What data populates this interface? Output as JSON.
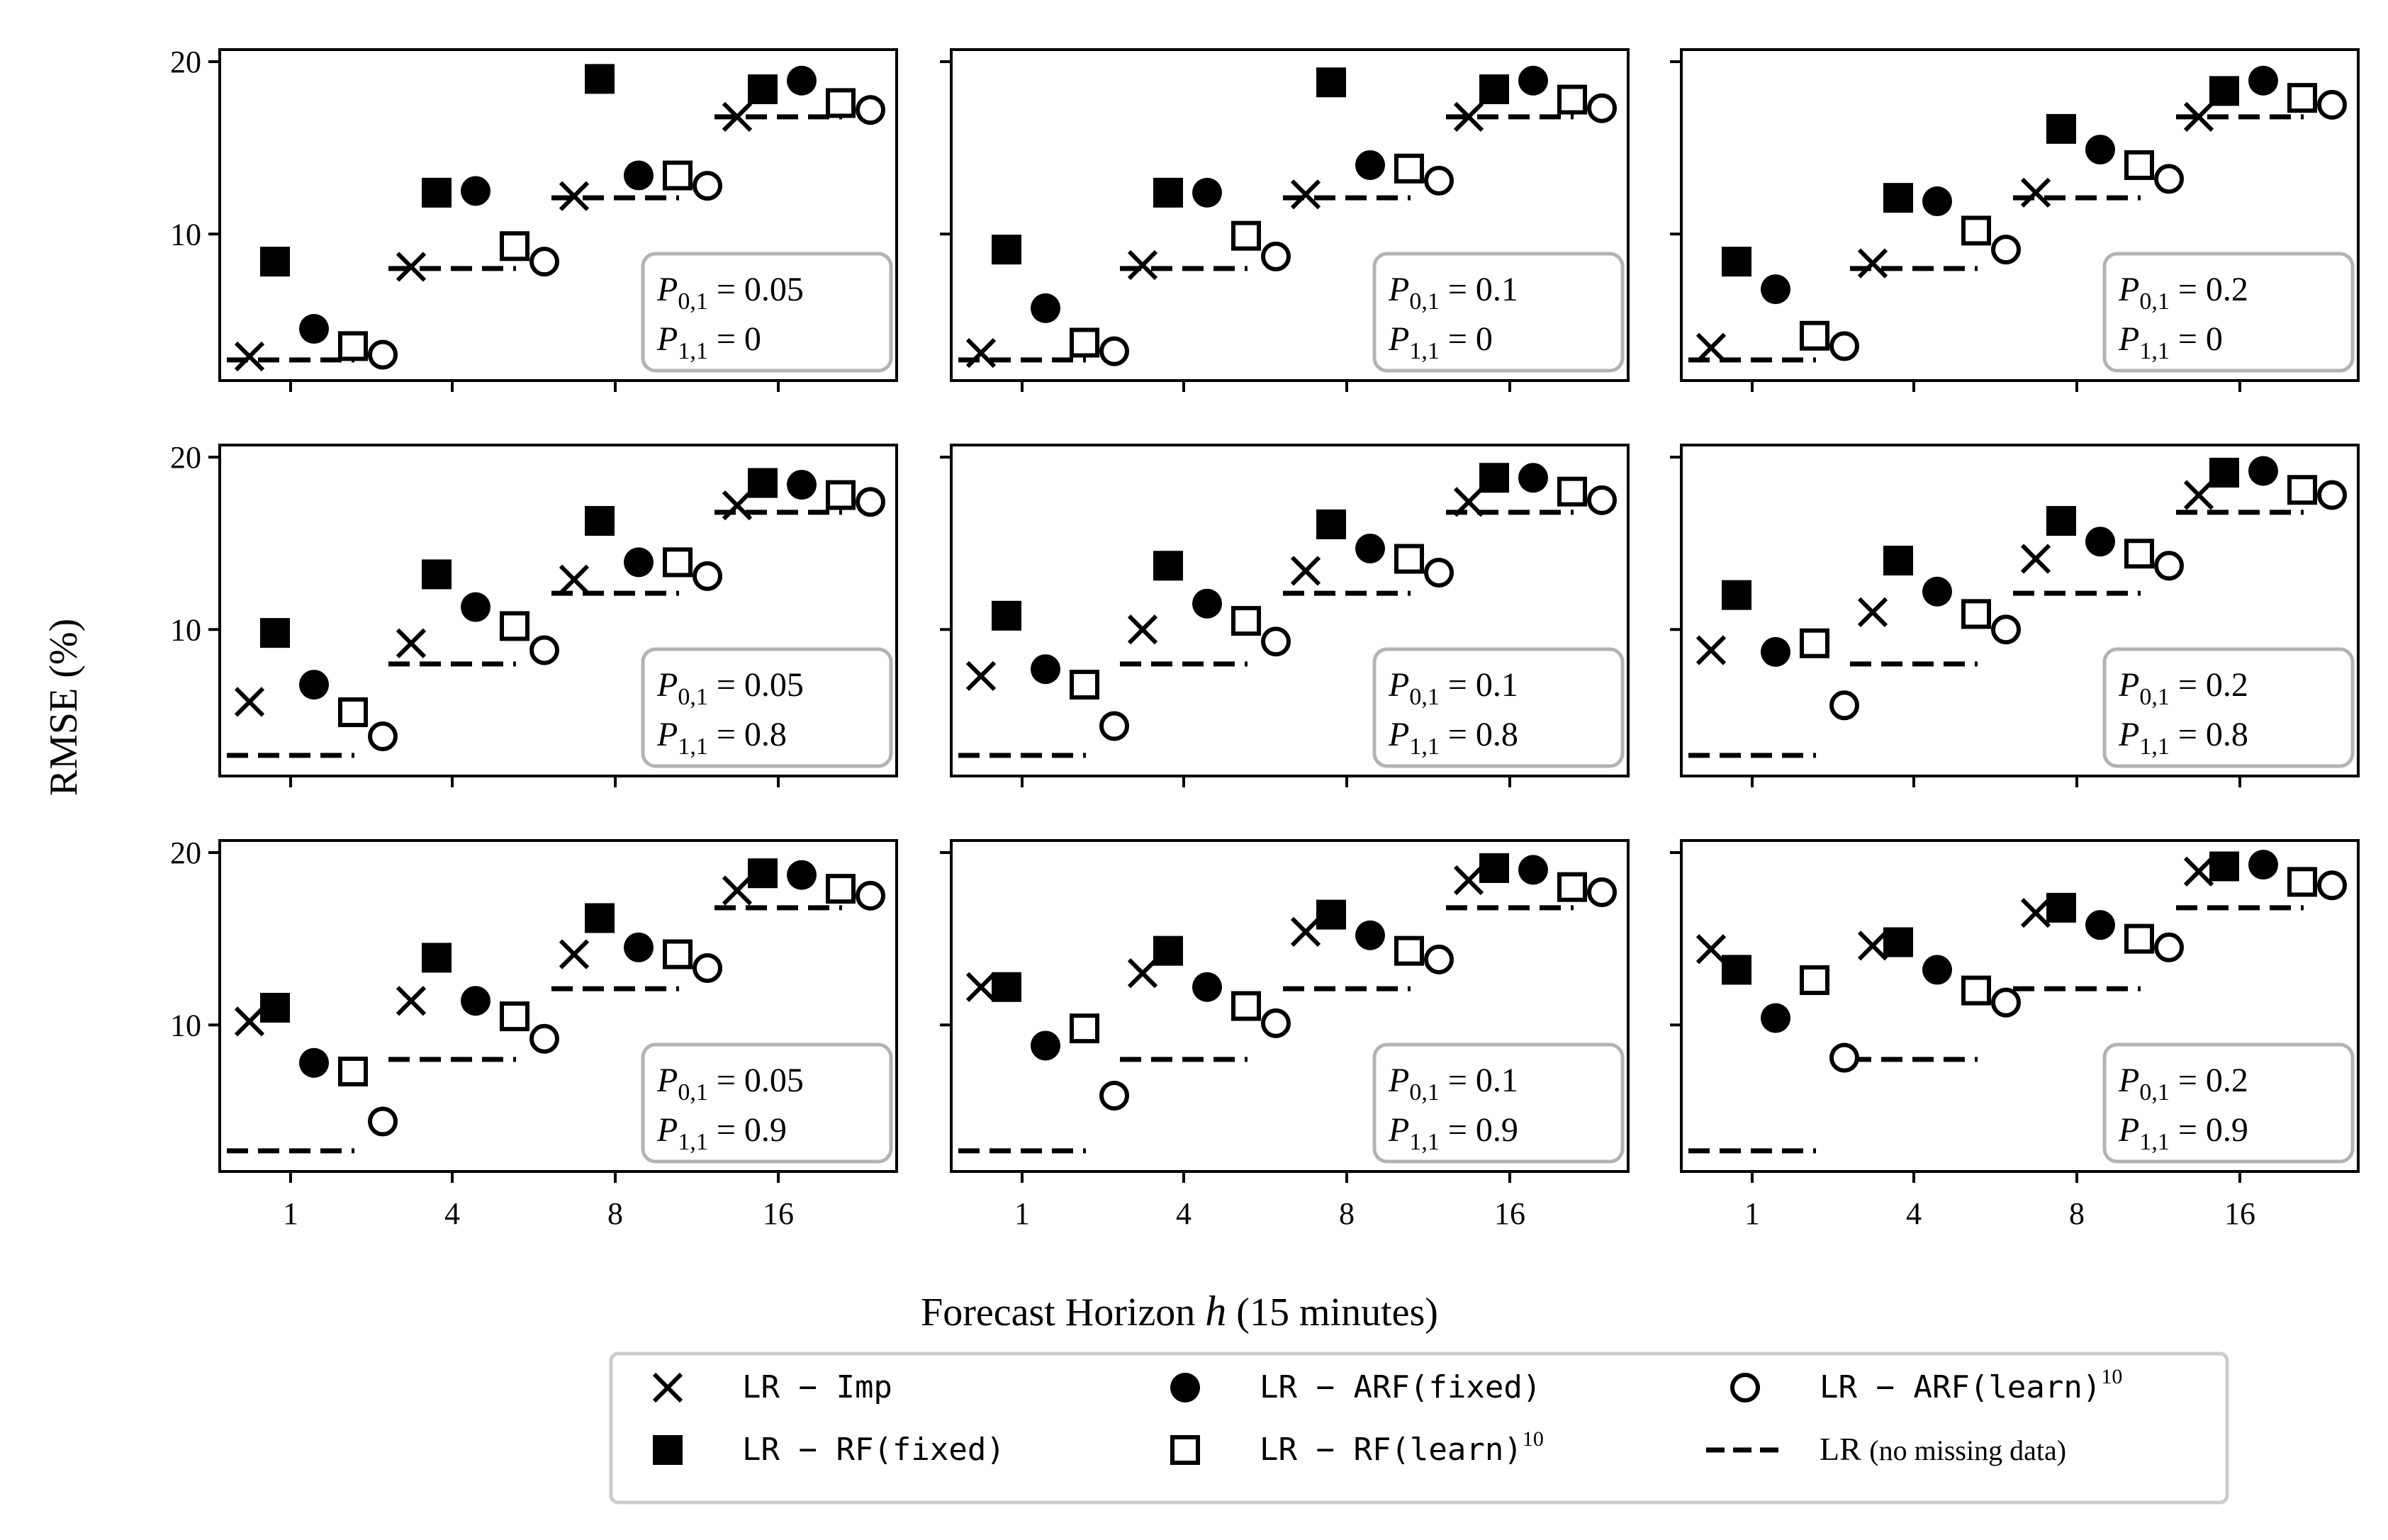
{
  "chart_data": {
    "type": "scatter",
    "ylabel": "RMSE (%)",
    "xlabel": {
      "prefix": "Forecast Horizon ",
      "var": "h",
      "suffix": " (15 minutes)"
    },
    "x_categories": [
      "1",
      "4",
      "8",
      "16"
    ],
    "y_ticks": [
      10,
      20
    ],
    "ylim": [
      1.5,
      20.7
    ],
    "grid": false,
    "legend_placement": "bottom-center",
    "series": [
      {
        "key": "imp",
        "marker": "x",
        "label_mono": "LR − Imp",
        "label_sup": ""
      },
      {
        "key": "rf_fixed",
        "marker": "filled-square",
        "label_mono": "LR − RF(fixed)",
        "label_sup": ""
      },
      {
        "key": "arf_fixed",
        "marker": "filled-circle",
        "label_mono": "LR − ARF(fixed)",
        "label_sup": ""
      },
      {
        "key": "rf_learn",
        "marker": "open-square",
        "label_mono": "LR − RF(learn)",
        "label_sup": "10"
      },
      {
        "key": "arf_learn",
        "marker": "open-circle",
        "label_mono": "LR − ARF(learn)",
        "label_sup": "10"
      },
      {
        "key": "baseline",
        "marker": "dashed-line",
        "label_mono": "",
        "label_serif": "LR",
        "label_small": "(no missing data)"
      }
    ],
    "baseline": [
      2.7,
      8.0,
      12.1,
      16.8
    ],
    "panels": [
      {
        "p01": "0.05",
        "p11": "0",
        "imp": [
          2.9,
          8.1,
          12.2,
          16.8
        ],
        "rf_fixed": [
          8.4,
          12.4,
          19.0,
          18.4
        ],
        "arf_fixed": [
          4.5,
          12.5,
          13.4,
          18.9
        ],
        "rf_learn": [
          3.5,
          9.3,
          13.4,
          17.6
        ],
        "arf_learn": [
          3.0,
          8.4,
          12.8,
          17.2
        ]
      },
      {
        "p01": "0.1",
        "p11": "0",
        "imp": [
          3.1,
          8.2,
          12.3,
          16.8
        ],
        "rf_fixed": [
          9.1,
          12.4,
          18.8,
          18.4
        ],
        "arf_fixed": [
          5.7,
          12.4,
          14.0,
          18.9
        ],
        "rf_learn": [
          3.7,
          9.9,
          13.8,
          17.8
        ],
        "arf_learn": [
          3.2,
          8.7,
          13.1,
          17.3
        ]
      },
      {
        "p01": "0.2",
        "p11": "0",
        "imp": [
          3.4,
          8.3,
          12.4,
          16.8
        ],
        "rf_fixed": [
          8.4,
          12.1,
          16.1,
          18.3
        ],
        "arf_fixed": [
          6.8,
          11.9,
          14.9,
          18.9
        ],
        "rf_learn": [
          4.1,
          10.2,
          14.0,
          17.9
        ],
        "arf_learn": [
          3.5,
          9.1,
          13.2,
          17.5
        ]
      },
      {
        "p01": "0.05",
        "p11": "0.8",
        "imp": [
          5.8,
          9.2,
          12.9,
          17.2
        ],
        "rf_fixed": [
          9.8,
          13.2,
          16.3,
          18.5
        ],
        "arf_fixed": [
          6.8,
          11.3,
          13.9,
          18.4
        ],
        "rf_learn": [
          5.2,
          10.2,
          13.9,
          17.8
        ],
        "arf_learn": [
          3.8,
          8.8,
          13.1,
          17.4
        ]
      },
      {
        "p01": "0.1",
        "p11": "0.8",
        "imp": [
          7.3,
          10.0,
          13.4,
          17.4
        ],
        "rf_fixed": [
          10.8,
          13.7,
          16.1,
          18.8
        ],
        "arf_fixed": [
          7.7,
          11.5,
          14.7,
          18.8
        ],
        "rf_learn": [
          6.8,
          10.5,
          14.1,
          18.0
        ],
        "arf_learn": [
          4.4,
          9.3,
          13.3,
          17.5
        ]
      },
      {
        "p01": "0.2",
        "p11": "0.8",
        "imp": [
          8.8,
          11.0,
          14.1,
          17.8
        ],
        "rf_fixed": [
          12.0,
          14.0,
          16.3,
          19.1
        ],
        "arf_fixed": [
          8.7,
          12.2,
          15.1,
          19.2
        ],
        "rf_learn": [
          9.2,
          10.9,
          14.4,
          18.1
        ],
        "arf_learn": [
          5.6,
          10.0,
          13.7,
          17.8
        ]
      },
      {
        "p01": "0.05",
        "p11": "0.9",
        "imp": [
          10.2,
          11.4,
          14.1,
          17.8
        ],
        "rf_fixed": [
          11.0,
          13.9,
          16.2,
          18.8
        ],
        "arf_fixed": [
          7.8,
          11.4,
          14.5,
          18.7
        ],
        "rf_learn": [
          7.3,
          10.5,
          14.1,
          17.9
        ],
        "arf_learn": [
          4.4,
          9.2,
          13.3,
          17.5
        ]
      },
      {
        "p01": "0.1",
        "p11": "0.9",
        "imp": [
          12.2,
          13.0,
          15.4,
          18.4
        ],
        "rf_fixed": [
          12.2,
          14.3,
          16.4,
          19.1
        ],
        "arf_fixed": [
          8.8,
          12.2,
          15.2,
          19.0
        ],
        "rf_learn": [
          9.8,
          11.1,
          14.3,
          18.0
        ],
        "arf_learn": [
          5.9,
          10.1,
          13.8,
          17.7
        ]
      },
      {
        "p01": "0.2",
        "p11": "0.9",
        "imp": [
          14.4,
          14.6,
          16.5,
          18.9
        ],
        "rf_fixed": [
          13.2,
          14.8,
          16.8,
          19.2
        ],
        "arf_fixed": [
          10.4,
          13.2,
          15.8,
          19.3
        ],
        "rf_learn": [
          12.6,
          12.0,
          15.0,
          18.3
        ],
        "arf_learn": [
          8.1,
          11.3,
          14.5,
          18.1
        ]
      }
    ]
  }
}
